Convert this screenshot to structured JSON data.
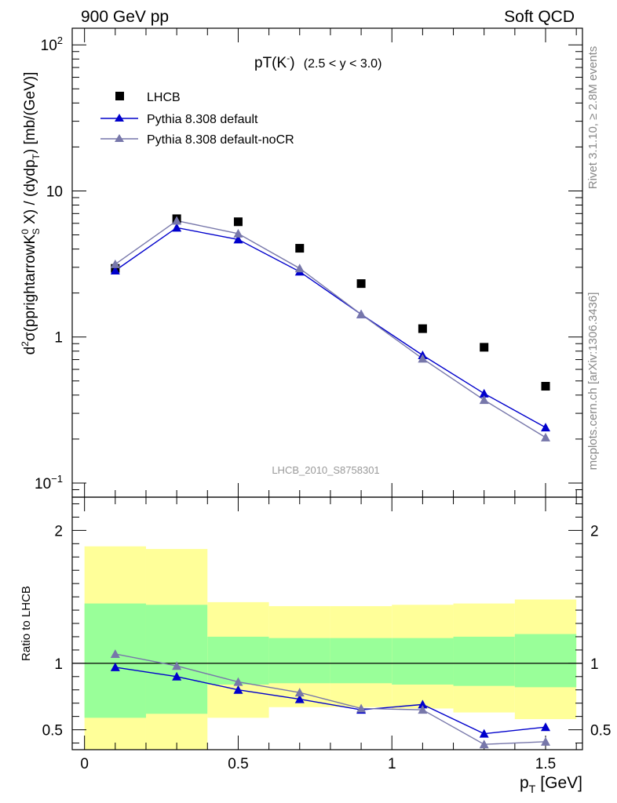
{
  "header": {
    "left": "900 GeV pp",
    "right": "Soft QCD"
  },
  "side_labels": {
    "rivet": "Rivet 3.1.10, ≥ 2.8M events",
    "mcplots": "mcplots.cern.ch [arXiv:1306.3436]"
  },
  "analysis_id": "LHCB_2010_S8758301",
  "colors": {
    "data": "#000000",
    "pythia_default": "#0000cc",
    "pythia_nocr": "#7777aa",
    "band_green": "#99ff99",
    "band_yellow": "#ffff99"
  },
  "chart_data": [
    {
      "type": "scatter",
      "title_main": "pT(K",
      "title_sup": "-",
      "title_close": ")",
      "title_range": "(2.5 < y < 3.0)",
      "ylabel": "d²σ(pprightarrowK⁰S X) / (dydpT) [mb/(GeV)]",
      "ylabel_parts": {
        "d": "d",
        "sup2": "2",
        "sigma": "σ(pprightarrowK",
        "sup0": "0",
        "subS": "S",
        "mid": " X) / (dydp",
        "subT": "T",
        "end": ") [mb/(GeV)]"
      },
      "yscale": "log",
      "ylim": [
        0.08,
        130
      ],
      "xlim": [
        -0.04,
        1.62
      ],
      "yticks": [
        {
          "v": 0.1,
          "base": "10",
          "exp": "−1"
        },
        {
          "v": 1,
          "base": "1",
          "exp": ""
        },
        {
          "v": 10,
          "base": "10",
          "exp": ""
        },
        {
          "v": 100,
          "base": "10",
          "exp": "2"
        }
      ],
      "legend_position": "top-left",
      "series": [
        {
          "name": "LHCB",
          "marker": "square",
          "x": [
            0.1,
            0.3,
            0.5,
            0.7,
            0.9,
            1.1,
            1.3,
            1.5
          ],
          "y": [
            2.95,
            6.45,
            6.15,
            4.05,
            2.32,
            1.14,
            0.85,
            0.46
          ]
        },
        {
          "name": "Pythia 8.308 default",
          "marker": "triangle",
          "x": [
            0.1,
            0.3,
            0.5,
            0.7,
            0.9,
            1.1,
            1.3,
            1.5
          ],
          "y": [
            2.85,
            5.6,
            4.65,
            2.8,
            1.43,
            0.75,
            0.41,
            0.24
          ]
        },
        {
          "name": "Pythia 8.308 default-noCR",
          "marker": "triangle",
          "x": [
            0.1,
            0.3,
            0.5,
            0.7,
            0.9,
            1.1,
            1.3,
            1.5
          ],
          "y": [
            3.15,
            6.25,
            5.1,
            2.95,
            1.43,
            0.71,
            0.37,
            0.205
          ]
        }
      ]
    },
    {
      "type": "line",
      "ylabel": "Ratio to LHCB",
      "xlabel_main": "p",
      "xlabel_sub": "T",
      "xlabel_unit": "[GeV]",
      "xlim": [
        -0.04,
        1.62
      ],
      "ylim": [
        0.35,
        2.25
      ],
      "xticks": [
        {
          "v": 0,
          "label": "0"
        },
        {
          "v": 0.5,
          "label": "0.5"
        },
        {
          "v": 1,
          "label": "1"
        },
        {
          "v": 1.5,
          "label": "1.5"
        }
      ],
      "yticks": [
        {
          "v": 0.5,
          "label": "0.5"
        },
        {
          "v": 1,
          "label": "1"
        },
        {
          "v": 2,
          "label": "2"
        }
      ],
      "bins": [
        {
          "lo": 0.0,
          "hi": 0.2,
          "yellow": [
            0.35,
            1.88
          ],
          "green": [
            0.59,
            1.45
          ]
        },
        {
          "lo": 0.2,
          "hi": 0.4,
          "yellow": [
            0.35,
            1.86
          ],
          "green": [
            0.62,
            1.44
          ]
        },
        {
          "lo": 0.4,
          "hi": 0.6,
          "yellow": [
            0.59,
            1.46
          ],
          "green": [
            0.84,
            1.2
          ]
        },
        {
          "lo": 0.6,
          "hi": 0.8,
          "yellow": [
            0.67,
            1.43
          ],
          "green": [
            0.85,
            1.19
          ]
        },
        {
          "lo": 0.8,
          "hi": 1.0,
          "yellow": [
            0.67,
            1.43
          ],
          "green": [
            0.85,
            1.19
          ]
        },
        {
          "lo": 1.0,
          "hi": 1.2,
          "yellow": [
            0.66,
            1.44
          ],
          "green": [
            0.84,
            1.19
          ]
        },
        {
          "lo": 1.2,
          "hi": 1.4,
          "yellow": [
            0.63,
            1.45
          ],
          "green": [
            0.83,
            1.2
          ]
        },
        {
          "lo": 1.4,
          "hi": 1.6,
          "yellow": [
            0.58,
            1.48
          ],
          "green": [
            0.82,
            1.22
          ]
        }
      ],
      "series": [
        {
          "name": "Pythia 8.308 default",
          "x": [
            0.1,
            0.3,
            0.5,
            0.7,
            0.9,
            1.1,
            1.3,
            1.5
          ],
          "y": [
            0.97,
            0.9,
            0.8,
            0.73,
            0.65,
            0.69,
            0.47,
            0.52
          ]
        },
        {
          "name": "Pythia 8.308 default-noCR",
          "x": [
            0.1,
            0.3,
            0.5,
            0.7,
            0.9,
            1.1,
            1.3,
            1.5
          ],
          "y": [
            1.07,
            0.98,
            0.86,
            0.78,
            0.66,
            0.65,
            0.39,
            0.41
          ]
        }
      ]
    }
  ]
}
